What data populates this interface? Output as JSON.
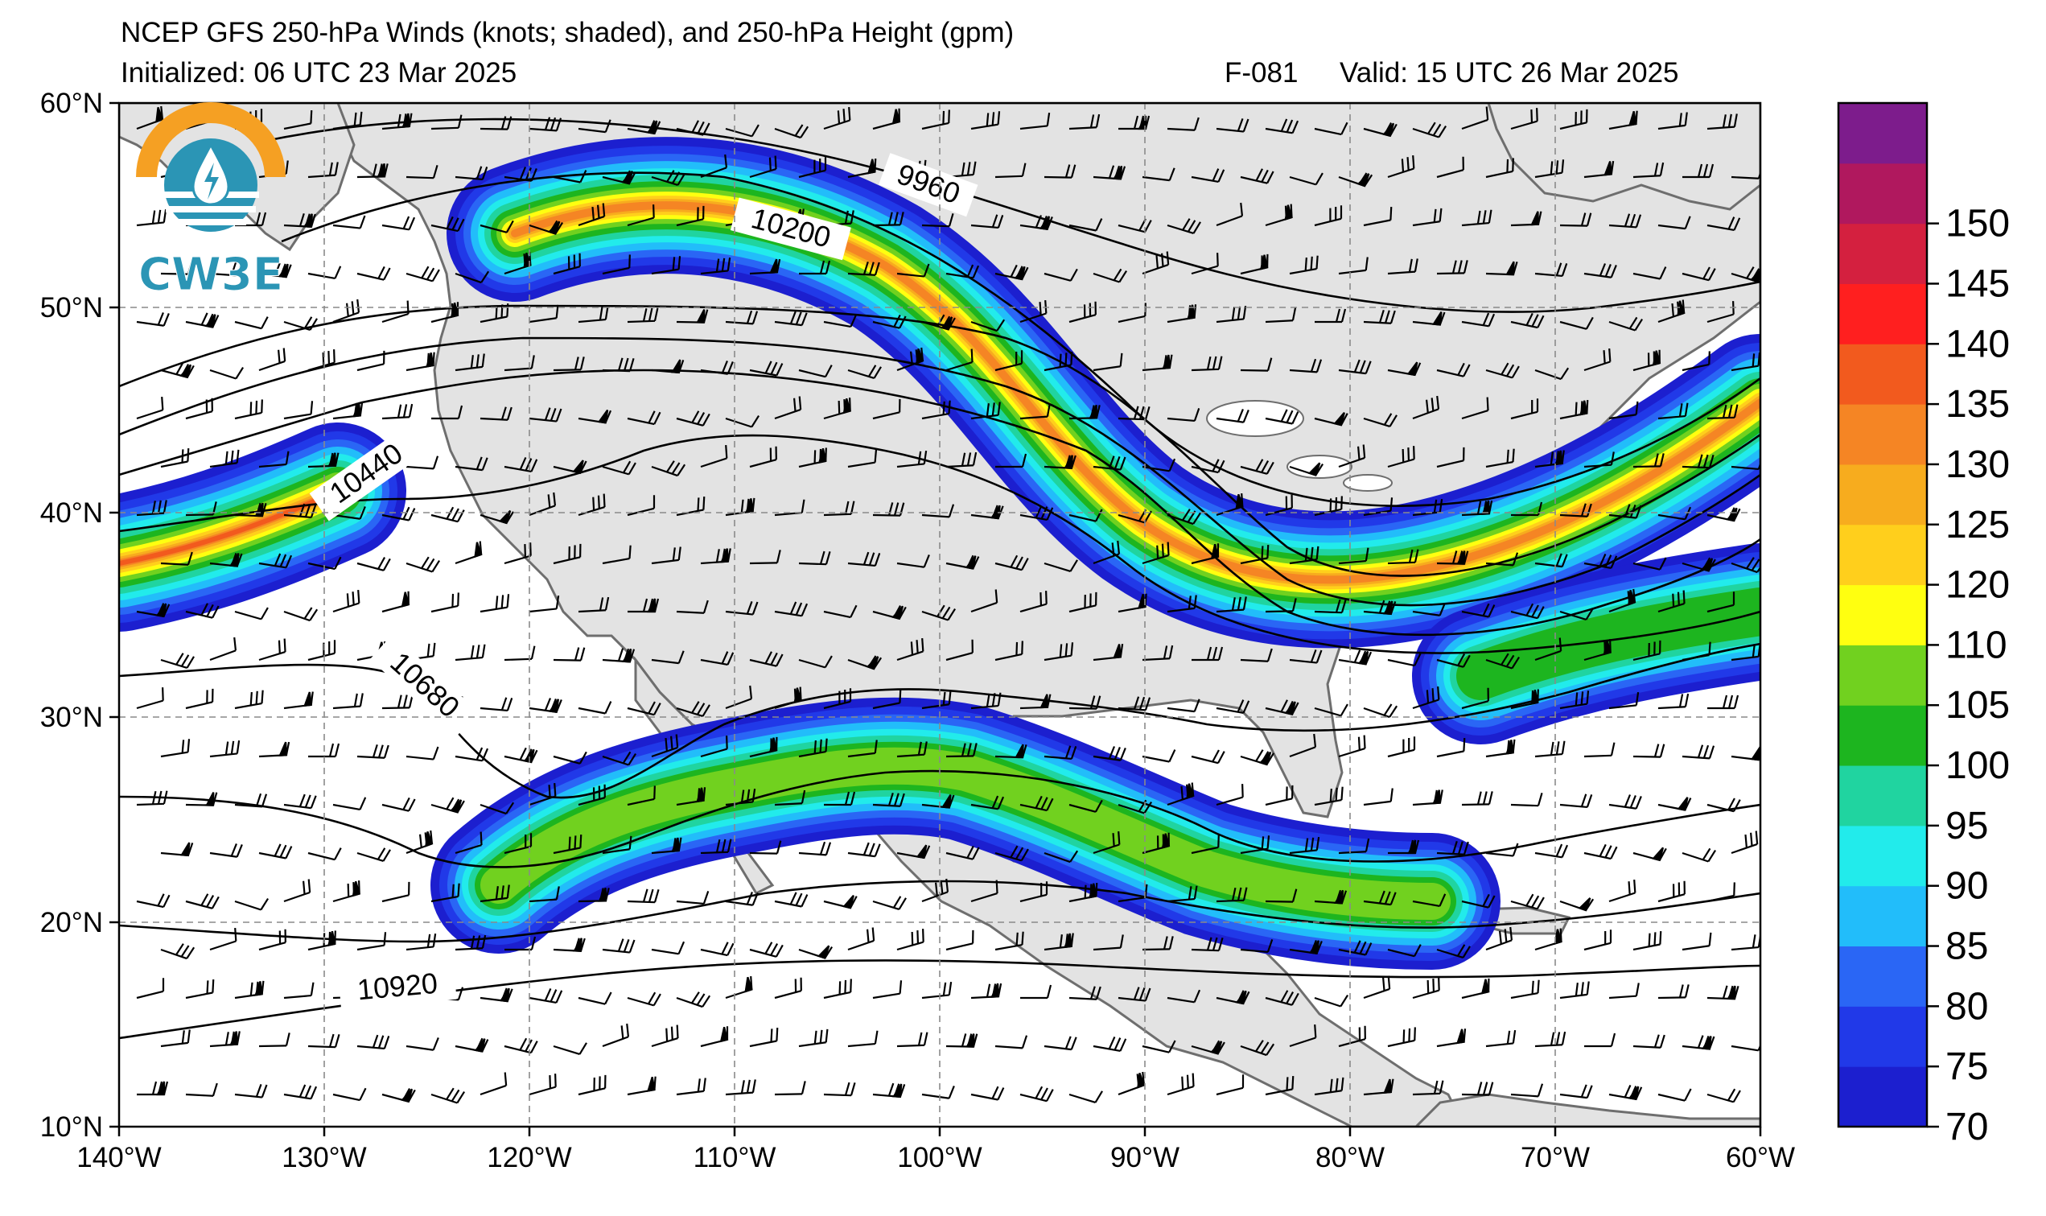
{
  "header": {
    "title": "NCEP GFS 250-hPa Winds (knots; shaded), and 250-hPa Height (gpm)",
    "initialized": "Initialized: 06 UTC 23 Mar 2025",
    "forecast_hour": "F-081",
    "valid": "Valid: 15 UTC 26 Mar 2025"
  },
  "logo": {
    "text": "CW3E",
    "icon": "water-drop-lightning-icon",
    "colors": {
      "orange": "#f5a023",
      "teal": "#2b95b5"
    }
  },
  "map": {
    "lon_labels": [
      "140°W",
      "130°W",
      "120°W",
      "110°W",
      "100°W",
      "90°W",
      "80°W",
      "70°W",
      "60°W"
    ],
    "lat_labels": [
      "60°N",
      "50°N",
      "40°N",
      "30°N",
      "20°N",
      "10°N"
    ],
    "lon_range": [
      -140,
      -60
    ],
    "lat_range": [
      10,
      60
    ],
    "gridlines": "dashed gray",
    "land_color": "#e3e3e3",
    "ocean_color": "#ffffff",
    "contour_labels": [
      {
        "value": "9960"
      },
      {
        "value": "10200"
      },
      {
        "value": "10440"
      },
      {
        "value": "10680"
      },
      {
        "value": "10920"
      }
    ]
  },
  "colorbar": {
    "levels": [
      "70",
      "75",
      "80",
      "85",
      "90",
      "95",
      "100",
      "105",
      "110",
      "120",
      "125",
      "130",
      "135",
      "140",
      "145",
      "150"
    ],
    "colors": [
      "#1c1fcf",
      "#2139e8",
      "#2a66f5",
      "#22bdfa",
      "#22ebeb",
      "#20d4a0",
      "#1db51f",
      "#71d11f",
      "#ffff10",
      "#ffcf1c",
      "#f7ac1e",
      "#f58524",
      "#f25a1e",
      "#ff1f1f",
      "#d4203f",
      "#b0185e",
      "#7d1c8c"
    ]
  }
}
